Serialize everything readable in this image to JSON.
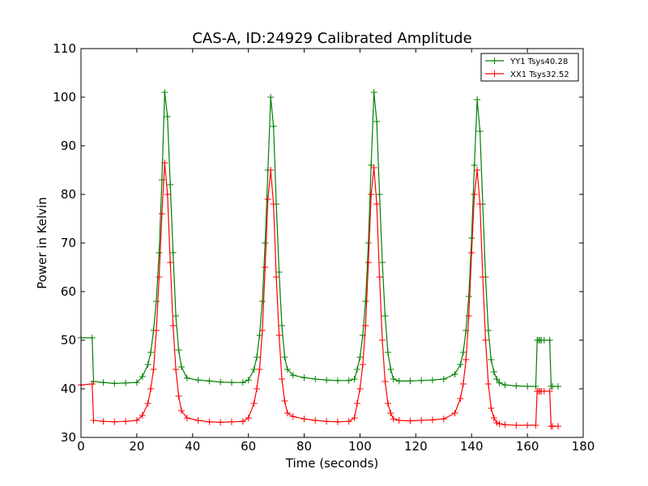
{
  "chart_data": {
    "type": "line",
    "title": "CAS-A, ID:24929 Calibrated Amplitude",
    "xlabel": "Time (seconds)",
    "ylabel": "Power in Kelvin",
    "xlim": [
      0,
      180
    ],
    "ylim": [
      30,
      110
    ],
    "xticks": [
      0,
      20,
      40,
      60,
      80,
      100,
      120,
      140,
      160,
      180
    ],
    "yticks": [
      30,
      40,
      50,
      60,
      70,
      80,
      90,
      100,
      110
    ],
    "xtick_labels": [
      "0",
      "20",
      "40",
      "60",
      "80",
      "100",
      "120",
      "140",
      "160",
      "180"
    ],
    "ytick_labels": [
      "30",
      "40",
      "50",
      "60",
      "70",
      "80",
      "90",
      "100",
      "110"
    ],
    "grid": false,
    "legend_position": "top-right",
    "marker": "plus",
    "series": [
      {
        "name": "YY1 Tsys40.28",
        "color": "#008000",
        "x": [
          0,
          4,
          4.5,
          8,
          12,
          16,
          20,
          22,
          24,
          25,
          26,
          27,
          28,
          29,
          30,
          31,
          32,
          33,
          34,
          35,
          36,
          38,
          42,
          46,
          50,
          54,
          58,
          60,
          62,
          63,
          64,
          65,
          66,
          67,
          68,
          69,
          70,
          71,
          72,
          73,
          74,
          76,
          80,
          84,
          88,
          92,
          96,
          98,
          99,
          100,
          101,
          102,
          103,
          104,
          105,
          106,
          107,
          108,
          109,
          110,
          111,
          112,
          114,
          118,
          122,
          126,
          130,
          134,
          136,
          137,
          138,
          139,
          140,
          141,
          142,
          143,
          144,
          145,
          146,
          147,
          148,
          149,
          150,
          152,
          156,
          160,
          163,
          163.5,
          164,
          164.5,
          165,
          166,
          168,
          168.5,
          169,
          171
        ],
        "values": [
          50.5,
          50.5,
          41.5,
          41.3,
          41.1,
          41.2,
          41.3,
          42.5,
          45.0,
          47.5,
          52.0,
          58.0,
          68.0,
          83.0,
          101.0,
          96.0,
          82.0,
          68.0,
          55.0,
          48.0,
          44.5,
          42.2,
          41.8,
          41.6,
          41.4,
          41.3,
          41.3,
          41.8,
          44.0,
          46.5,
          51.0,
          58.0,
          70.0,
          85.0,
          100.0,
          94.0,
          78.0,
          64.0,
          53.0,
          46.5,
          44.0,
          42.8,
          42.3,
          42.0,
          41.8,
          41.7,
          41.7,
          42.0,
          44.0,
          46.5,
          51.0,
          58.0,
          70.0,
          86.0,
          101.0,
          95.0,
          80.0,
          66.0,
          55.0,
          47.5,
          44.0,
          42.0,
          41.6,
          41.6,
          41.7,
          41.8,
          42.0,
          43.0,
          45.0,
          47.5,
          52.0,
          59.0,
          71.0,
          86.0,
          99.5,
          93.0,
          78.0,
          63.0,
          52.0,
          46.0,
          43.5,
          42.0,
          41.2,
          40.8,
          40.6,
          40.5,
          40.5,
          50.0,
          50.0,
          50.0,
          50.0,
          50.0,
          50.0,
          40.5,
          40.5,
          40.5
        ]
      },
      {
        "name": "XX1 Tsys32.52",
        "color": "#ff0000",
        "x": [
          0,
          4,
          4.5,
          8,
          12,
          16,
          20,
          22,
          24,
          25,
          26,
          27,
          28,
          29,
          30,
          31,
          32,
          33,
          34,
          35,
          36,
          38,
          42,
          46,
          50,
          54,
          58,
          60,
          62,
          63,
          64,
          65,
          66,
          67,
          68,
          69,
          70,
          71,
          72,
          73,
          74,
          76,
          80,
          84,
          88,
          92,
          96,
          98,
          99,
          100,
          101,
          102,
          103,
          104,
          105,
          106,
          107,
          108,
          109,
          110,
          111,
          112,
          114,
          118,
          122,
          126,
          130,
          134,
          136,
          137,
          138,
          139,
          140,
          141,
          142,
          143,
          144,
          145,
          146,
          147,
          148,
          149,
          150,
          152,
          156,
          160,
          163,
          163.5,
          164,
          164.5,
          165,
          166,
          168,
          168.5,
          169,
          171
        ],
        "values": [
          40.8,
          41.0,
          33.5,
          33.3,
          33.2,
          33.3,
          33.5,
          34.5,
          37.0,
          40.0,
          44.0,
          52.0,
          63.0,
          76.0,
          86.5,
          80.0,
          66.0,
          53.0,
          44.0,
          38.5,
          35.5,
          34.0,
          33.5,
          33.2,
          33.1,
          33.2,
          33.3,
          34.0,
          37.0,
          40.0,
          44.0,
          52.0,
          65.0,
          79.0,
          85.0,
          78.0,
          63.0,
          51.0,
          42.0,
          37.5,
          35.0,
          34.3,
          33.8,
          33.5,
          33.3,
          33.2,
          33.3,
          34.0,
          37.0,
          40.0,
          45.0,
          53.0,
          66.0,
          80.0,
          85.5,
          78.0,
          63.0,
          50.0,
          41.5,
          37.0,
          35.0,
          33.8,
          33.5,
          33.4,
          33.5,
          33.6,
          33.8,
          35.0,
          38.0,
          41.0,
          46.0,
          55.0,
          68.0,
          80.0,
          85.0,
          78.0,
          63.0,
          50.0,
          41.0,
          36.0,
          34.0,
          33.0,
          32.8,
          32.6,
          32.5,
          32.5,
          32.5,
          39.5,
          39.5,
          39.5,
          39.5,
          39.5,
          39.5,
          32.3,
          32.3,
          32.3
        ]
      }
    ]
  }
}
